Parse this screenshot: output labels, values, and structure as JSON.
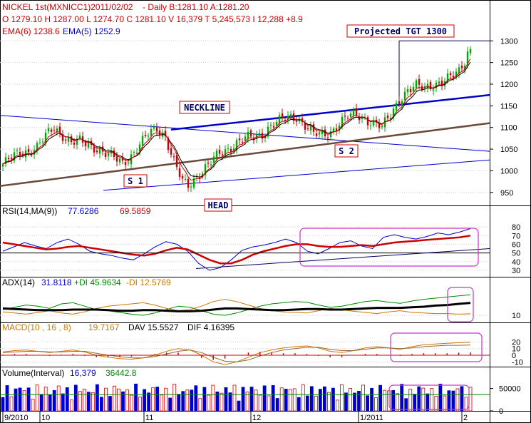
{
  "header": {
    "line1_title": "NICKEL 1st(MXNICC1)2011/02/02",
    "line1_quote": "- Daily B:1281.10 A:1281.20",
    "line2_ohlc": "O 1279.10 H 1287.00 L 1274.70 C 1281.10 V 16,379 T 5,245,573 I 12,288 +8.9",
    "line3_ema6": "EMA(6) 1238.6",
    "line3_ema5": "EMA(5) 1252.9"
  },
  "annotations": {
    "projected": "Projected TGT 1300",
    "neckline": "NECKLINE",
    "s1": "S 1",
    "s2": "S 2",
    "head": "HEAD"
  },
  "panels": {
    "rsi": {
      "label": "RSI(14,MA(9))",
      "v1": "77.6286",
      "v2": "69.5859"
    },
    "adx": {
      "label": "ADX(14)",
      "v1": "31.8118",
      "di_plus": "+DI 45.9634",
      "di_minus": "-DI 12.5769"
    },
    "macd": {
      "label": "MACD(10 , 16 , 8)",
      "v1": "19.7167",
      "dav": "DAV 15.5527",
      "dif": "DIF 4.16395"
    },
    "volume": {
      "label": "Volume(Interval)",
      "v1": "16,379",
      "v2": "36442.8"
    }
  },
  "colors": {
    "up_candle": "#00aa00",
    "down_candle": "#cc0000",
    "ema": "#cc0000",
    "trend_blue": "#0000cc",
    "trend_brown": "#6b4a3a",
    "highlight_box": "#cc33cc",
    "volume_up": "#0000cc",
    "volume_down": "#cc0000"
  },
  "chart_data": [
    {
      "type": "candlestick",
      "title": "NICKEL 1st(MXNICC1)2011/02/02",
      "ylim": [
        925,
        1335
      ],
      "y_ticks": [
        "950",
        "1000",
        "1050",
        "1100",
        "1150",
        "1200",
        "1250",
        "1300"
      ],
      "x_labels": [
        "9/2010",
        "10",
        "11",
        "12",
        "1/2011",
        "2"
      ],
      "close_path": [
        [
          0,
          1015
        ],
        [
          3,
          1030
        ],
        [
          6,
          1042
        ],
        [
          9,
          1045
        ],
        [
          12,
          1055
        ],
        [
          15,
          1080
        ],
        [
          18,
          1100
        ],
        [
          21,
          1082
        ],
        [
          24,
          1065
        ],
        [
          27,
          1068
        ],
        [
          30,
          1060
        ],
        [
          33,
          1052
        ],
        [
          36,
          1040
        ],
        [
          39,
          1030
        ],
        [
          42,
          1018
        ],
        [
          45,
          1035
        ],
        [
          48,
          1060
        ],
        [
          51,
          1085
        ],
        [
          54,
          1098
        ],
        [
          57,
          1080
        ],
        [
          59,
          1040
        ],
        [
          61,
          1005
        ],
        [
          63,
          975
        ],
        [
          65,
          965
        ],
        [
          67,
          980
        ],
        [
          70,
          1000
        ],
        [
          73,
          1020
        ],
        [
          76,
          1040
        ],
        [
          79,
          1050
        ],
        [
          82,
          1065
        ],
        [
          85,
          1075
        ],
        [
          88,
          1078
        ],
        [
          91,
          1085
        ],
        [
          94,
          1105
        ],
        [
          97,
          1115
        ],
        [
          100,
          1122
        ],
        [
          103,
          1125
        ],
        [
          106,
          1105
        ],
        [
          109,
          1085
        ],
        [
          112,
          1082
        ],
        [
          115,
          1090
        ],
        [
          118,
          1110
        ],
        [
          121,
          1125
        ],
        [
          124,
          1130
        ],
        [
          127,
          1120
        ],
        [
          130,
          1110
        ],
        [
          133,
          1100
        ],
        [
          136,
          1130
        ],
        [
          139,
          1165
        ],
        [
          142,
          1185
        ],
        [
          145,
          1195
        ],
        [
          148,
          1192
        ],
        [
          151,
          1200
        ],
        [
          154,
          1205
        ],
        [
          157,
          1215
        ],
        [
          160,
          1230
        ],
        [
          162,
          1255
        ],
        [
          163,
          1275
        ],
        [
          164,
          1281
        ]
      ],
      "annotations": [
        "Projected TGT 1300",
        "NECKLINE",
        "S 1",
        "S 2",
        "HEAD"
      ]
    },
    {
      "type": "line",
      "title": "RSI(14,MA(9))",
      "ylim": [
        25,
        85
      ],
      "y_ticks": [
        "30",
        "40",
        "50",
        "60",
        "70",
        "80"
      ],
      "series": [
        {
          "values": [
            52,
            57,
            62,
            58,
            55,
            62,
            66,
            60,
            52,
            49,
            47,
            44,
            42,
            49,
            57,
            63,
            60,
            52,
            38,
            30,
            33,
            42,
            53,
            57,
            59,
            62,
            66,
            62,
            52,
            49,
            55,
            62,
            64,
            58,
            55,
            68,
            71,
            68,
            66,
            69,
            73,
            71,
            74,
            78
          ]
        },
        {
          "values": [
            62,
            60,
            58,
            56,
            54,
            55,
            57,
            58,
            56,
            54,
            52,
            50,
            48,
            47,
            49,
            53,
            56,
            54,
            48,
            42,
            38,
            38,
            42,
            48,
            52,
            55,
            58,
            60,
            60,
            58,
            57,
            57,
            58,
            59,
            58,
            60,
            62,
            63,
            64,
            65,
            66,
            67,
            68,
            70
          ]
        }
      ]
    },
    {
      "type": "line",
      "title": "ADX(14)",
      "ylim": [
        0,
        50
      ],
      "y_ticks": [
        "10"
      ],
      "series": [
        {
          "name": "+DI",
          "values": [
            20,
            24,
            28,
            26,
            22,
            30,
            32,
            26,
            20,
            18,
            15,
            12,
            10,
            14,
            20,
            26,
            24,
            18,
            12,
            10,
            14,
            20,
            26,
            30,
            32,
            34,
            33,
            28,
            24,
            26,
            30,
            34,
            36,
            33,
            31,
            35,
            38,
            40,
            42,
            44,
            46
          ]
        },
        {
          "name": "-DI",
          "values": [
            16,
            14,
            12,
            15,
            18,
            14,
            12,
            16,
            22,
            26,
            28,
            30,
            32,
            28,
            22,
            18,
            20,
            26,
            34,
            38,
            34,
            28,
            22,
            18,
            16,
            15,
            14,
            18,
            22,
            20,
            17,
            15,
            13,
            16,
            18,
            15,
            14,
            13,
            13,
            12,
            12.6
          ]
        },
        {
          "values": [
            22,
            21,
            20,
            19,
            19,
            19,
            20,
            20,
            20,
            19,
            18,
            18,
            19,
            19,
            18,
            17,
            17,
            18,
            20,
            22,
            22,
            21,
            20,
            19,
            19,
            20,
            21,
            21,
            20,
            20,
            21,
            22,
            23,
            23,
            23,
            24,
            25,
            27,
            28,
            30,
            31.8
          ]
        }
      ]
    },
    {
      "type": "line",
      "title": "MACD(10 , 16 , 8)",
      "ylim": [
        -15,
        28
      ],
      "y_ticks": [
        "-10",
        "0",
        "10",
        "20"
      ],
      "series": [
        {
          "values": [
            5,
            7,
            8,
            6,
            4,
            6,
            8,
            5,
            0,
            -3,
            -5,
            -6,
            -4,
            0,
            6,
            10,
            8,
            0,
            -10,
            -14,
            -10,
            -3,
            4,
            8,
            11,
            13,
            14,
            11,
            6,
            4,
            7,
            11,
            13,
            11,
            9,
            13,
            16,
            17,
            18,
            19,
            19.7
          ]
        },
        {
          "values": [
            4,
            5,
            6,
            6,
            5,
            5,
            6,
            6,
            3,
            0,
            -2,
            -4,
            -4,
            -2,
            2,
            6,
            8,
            4,
            -3,
            -9,
            -10,
            -7,
            -1,
            4,
            8,
            10,
            12,
            12,
            9,
            7,
            7,
            9,
            11,
            11,
            10,
            11,
            13,
            14,
            15,
            15,
            15.5
          ]
        }
      ]
    },
    {
      "type": "bar",
      "title": "Volume(Interval)",
      "ylim": [
        0,
        70000
      ],
      "y_ticks": [
        "0",
        "50000"
      ]
    }
  ]
}
